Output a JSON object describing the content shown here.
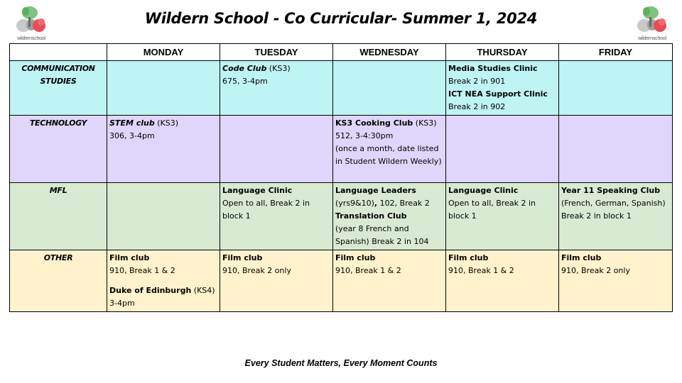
{
  "header": {
    "title": "Wildern School - Co Curricular- Summer 1, 2024",
    "logo_text": "wildernschool"
  },
  "colors": {
    "communication": "#bff4f4",
    "technology": "#e0d6fb",
    "mfl": "#d9ead3",
    "other": "#fff2cc"
  },
  "days": [
    "MONDAY",
    "TUESDAY",
    "WEDNESDAY",
    "THURSDAY",
    "FRIDAY"
  ],
  "rows": {
    "communication": {
      "label": "COMMUNICATION STUDIES",
      "tuesday": {
        "name": "Code Club",
        "tag": " (KS3)",
        "detail": "675, 3-4pm"
      },
      "thursday": {
        "a_name": "Media Studies Clinic",
        "a_detail": "Break 2 in 901",
        "b_name": "ICT NEA Support Clinic",
        "b_detail": "Break 2 in 902"
      }
    },
    "technology": {
      "label": "TECHNOLOGY",
      "monday": {
        "name": "STEM club",
        "tag": " (KS3)",
        "detail": "306, 3-4pm"
      },
      "wednesday": {
        "name": "KS3  Cooking Club",
        "tag": " (KS3)",
        "detail": "512, 3-4:30pm",
        "note": "(once a month, date listed in Student Wildern Weekly)"
      }
    },
    "mfl": {
      "label": "MFL",
      "tuesday": {
        "name": "Language Clinic",
        "detail": "Open to all, Break 2 in block 1"
      },
      "wednesday": {
        "a_name": "Language Leaders",
        "a_detail_pre": "(yrs9&10)",
        "a_detail_comma": ",",
        "a_detail_post": " 102, Break 2",
        "b_name": "Translation Club",
        "b_detail": "(year 8 French and Spanish) Break 2 in 104"
      },
      "thursday": {
        "name": "Language Clinic",
        "detail": "Open to all, Break 2 in block 1"
      },
      "friday": {
        "name": "Year 11 Speaking Club",
        "detail": "(French, German, Spanish) Break 2 in block 1"
      }
    },
    "other": {
      "label": "OTHER",
      "monday": {
        "a_name": "Film club",
        "a_detail": "910, Break 1 & 2",
        "b_name": "Duke of Edinburgh",
        "b_tag": " (KS4)",
        "b_detail": "3-4pm"
      },
      "tuesday": {
        "name": "Film club",
        "detail": "910, Break 2 only"
      },
      "wednesday": {
        "name": "Film club",
        "detail": "910, Break 1 & 2"
      },
      "thursday": {
        "name": "Film club",
        "detail": "910, Break 1 & 2"
      },
      "friday": {
        "name": "Film club",
        "detail": "910, Break 2 only"
      }
    }
  },
  "footer": {
    "motto": "Every Student Matters, Every Moment Counts"
  }
}
